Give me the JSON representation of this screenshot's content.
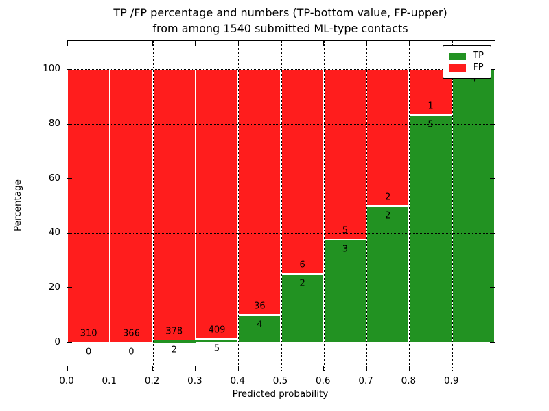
{
  "figure": {
    "title_line1": "TP /FP percentage and numbers (TP-bottom value, FP-upper)",
    "title_line2": "from among 1540 submitted ML-type contacts",
    "xlabel": "Predicted probability",
    "ylabel": "Percentage"
  },
  "chart_data": {
    "type": "bar",
    "stacked": true,
    "title": "TP /FP percentage and numbers (TP-bottom value, FP-upper)\nfrom among 1540 submitted ML-type contacts",
    "xlabel": "Predicted probability",
    "ylabel": "Percentage",
    "total_submitted_contacts": 1540,
    "xlim": [
      0.0,
      1.0
    ],
    "ylim": [
      -10.4,
      110.4
    ],
    "grid": "dotted",
    "bin_edges": [
      0.0,
      0.1,
      0.2,
      0.3,
      0.4,
      0.5,
      0.6,
      0.7,
      0.8,
      0.9,
      1.0
    ],
    "xtick_labels": [
      "0.0",
      "0.1",
      "0.2",
      "0.3",
      "0.4",
      "0.5",
      "0.6",
      "0.7",
      "0.8",
      "0.9"
    ],
    "ytick_values": [
      0,
      20,
      40,
      60,
      80,
      100
    ],
    "series": [
      {
        "name": "TP",
        "color": "#229222",
        "counts": [
          0,
          0,
          2,
          5,
          4,
          2,
          3,
          2,
          5,
          4
        ],
        "pct": [
          0,
          0,
          0.53,
          1.21,
          10,
          25,
          37.5,
          50,
          83.33,
          100
        ],
        "label_visible": [
          true,
          true,
          true,
          true,
          true,
          true,
          true,
          true,
          true,
          true
        ]
      },
      {
        "name": "FP",
        "color": "#ff1d1d",
        "counts": [
          310,
          366,
          378,
          409,
          36,
          6,
          5,
          2,
          1,
          0
        ],
        "pct": [
          100,
          100,
          99.47,
          98.79,
          90,
          75,
          62.5,
          50,
          16.67,
          0
        ],
        "label_visible": [
          true,
          true,
          true,
          true,
          true,
          true,
          true,
          true,
          true,
          false
        ]
      }
    ],
    "legend": {
      "position": "upper right",
      "entries": [
        {
          "label": "TP",
          "color": "#229222"
        },
        {
          "label": "FP",
          "color": "#ff1d1d"
        }
      ]
    }
  }
}
